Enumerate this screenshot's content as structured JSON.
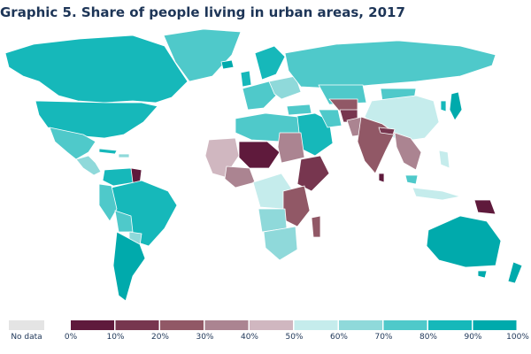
{
  "title": "Graphic 5. Share of people living in urban areas, 2017",
  "legend": {
    "no_data_label": "No data",
    "no_data_color": "#e4e4e4",
    "bins": [
      {
        "from": 0,
        "to": 10,
        "color": "#5f1a3c"
      },
      {
        "from": 10,
        "to": 20,
        "color": "#77364f"
      },
      {
        "from": 20,
        "to": 30,
        "color": "#915866"
      },
      {
        "from": 30,
        "to": 40,
        "color": "#ab8491"
      },
      {
        "from": 40,
        "to": 50,
        "color": "#d0b7c0"
      },
      {
        "from": 50,
        "to": 60,
        "color": "#c5ecec"
      },
      {
        "from": 60,
        "to": 70,
        "color": "#8fd9da"
      },
      {
        "from": 70,
        "to": 80,
        "color": "#4fc9ca"
      },
      {
        "from": 80,
        "to": 90,
        "color": "#16b8ba"
      },
      {
        "from": 90,
        "to": 100,
        "color": "#00aaac"
      }
    ],
    "tick_labels": [
      "0%",
      "10%",
      "20%",
      "30%",
      "40%",
      "50%",
      "60%",
      "70%",
      "80%",
      "90%",
      "100%"
    ]
  }
}
